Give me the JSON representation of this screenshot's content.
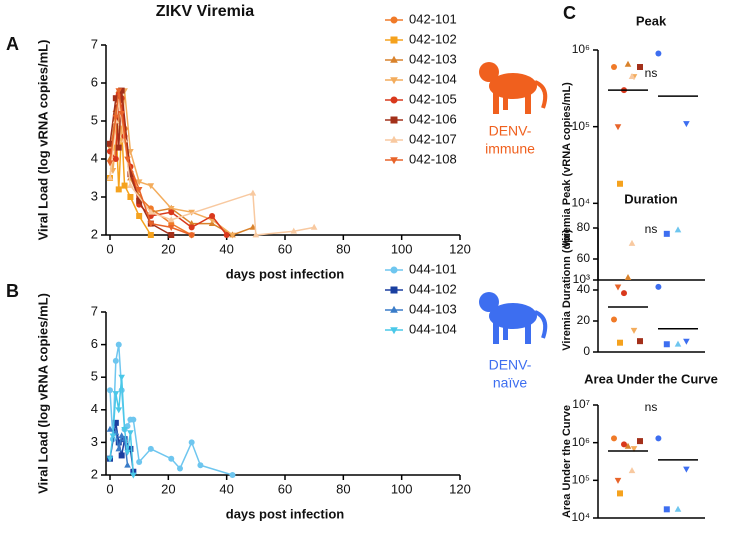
{
  "chart_data": [
    {
      "type": "line",
      "panel": "A",
      "title": "ZIKV Viremia",
      "xlabel": "days post infection",
      "ylabel": "Viral Load (log vRNA copies/mL)",
      "xlim": [
        0,
        120
      ],
      "xticks": [
        0,
        20,
        40,
        60,
        80,
        100,
        120
      ],
      "ylim": [
        2,
        7
      ],
      "yticks": [
        2,
        3,
        4,
        5,
        6,
        7
      ],
      "annotation_lines": [
        "DENV-",
        "immune"
      ],
      "annotation_color": "#f0601e",
      "series": [
        {
          "name": "042-101",
          "color": "#f07a28",
          "marker": "circle",
          "x": [
            0,
            2,
            3,
            4,
            5,
            7,
            10,
            14,
            21,
            28
          ],
          "values": [
            4.2,
            5.0,
            5.7,
            5.5,
            4.8,
            3.8,
            3.0,
            2.7,
            2.3,
            2.0
          ]
        },
        {
          "name": "042-102",
          "color": "#f5a21e",
          "marker": "square",
          "x": [
            0,
            1,
            2,
            3,
            4,
            5,
            7,
            10,
            14
          ],
          "values": [
            3.5,
            4.3,
            5.0,
            3.2,
            4.8,
            3.3,
            3.0,
            2.5,
            2.0
          ]
        },
        {
          "name": "042-103",
          "color": "#d9822b",
          "marker": "triangle",
          "x": [
            0,
            2,
            3,
            4,
            5,
            7,
            10,
            14,
            21,
            28,
            35,
            42,
            49
          ],
          "values": [
            4.0,
            5.3,
            5.8,
            5.2,
            4.5,
            3.5,
            3.0,
            2.6,
            2.7,
            2.3,
            2.3,
            2.0,
            2.2
          ]
        },
        {
          "name": "042-104",
          "color": "#f3ac5c",
          "marker": "down",
          "x": [
            0,
            1,
            3,
            4,
            5,
            7,
            10,
            14,
            21,
            28,
            35,
            42
          ],
          "values": [
            4.3,
            3.7,
            5.2,
            4.5,
            5.8,
            4.2,
            3.4,
            3.3,
            2.7,
            2.6,
            2.4,
            2.0
          ]
        },
        {
          "name": "042-105",
          "color": "#d9381c",
          "marker": "circle",
          "x": [
            0,
            2,
            3,
            4,
            5,
            7,
            10,
            14,
            21,
            28,
            35,
            40
          ],
          "values": [
            4.2,
            4.0,
            5.7,
            5.6,
            4.6,
            3.8,
            2.8,
            2.5,
            2.6,
            2.2,
            2.5,
            2.0
          ]
        },
        {
          "name": "042-106",
          "color": "#a3301a",
          "marker": "square",
          "x": [
            0,
            2,
            3,
            4,
            7,
            10,
            14,
            21
          ],
          "values": [
            4.4,
            5.6,
            4.3,
            5.8,
            3.6,
            2.9,
            2.3,
            2.0
          ]
        },
        {
          "name": "042-107",
          "color": "#f8c9a0",
          "marker": "triangle",
          "x": [
            0,
            2,
            3,
            5,
            7,
            14,
            21,
            49,
            50,
            63,
            70
          ],
          "values": [
            3.5,
            5.0,
            5.5,
            4.5,
            3.3,
            2.6,
            2.4,
            3.1,
            2.0,
            2.1,
            2.2
          ]
        },
        {
          "name": "042-108",
          "color": "#e8642a",
          "marker": "down",
          "x": [
            0,
            2,
            3,
            4,
            6,
            10,
            14,
            21,
            28
          ],
          "values": [
            3.9,
            5.1,
            5.8,
            5.2,
            4.0,
            3.2,
            2.3,
            2.2,
            2.0
          ]
        }
      ]
    },
    {
      "type": "line",
      "panel": "B",
      "xlabel": "days post infection",
      "ylabel": "Viral Load (log vRNA copies/mL)",
      "xlim": [
        0,
        120
      ],
      "xticks": [
        0,
        20,
        40,
        60,
        80,
        100,
        120
      ],
      "ylim": [
        2,
        7
      ],
      "yticks": [
        2,
        3,
        4,
        5,
        6,
        7
      ],
      "annotation_lines": [
        "DENV-",
        "naïve"
      ],
      "annotation_color": "#3d6ef0",
      "series": [
        {
          "name": "044-101",
          "color": "#6ec6ef",
          "marker": "circle",
          "x": [
            0,
            1,
            2,
            3,
            4,
            5,
            6,
            7,
            8,
            10,
            14,
            21,
            24,
            28,
            31,
            42
          ],
          "values": [
            4.6,
            3.1,
            5.5,
            6.0,
            4.6,
            3.4,
            3.5,
            3.7,
            3.7,
            2.4,
            2.8,
            2.5,
            2.2,
            3.0,
            2.3,
            2.0
          ]
        },
        {
          "name": "044-102",
          "color": "#1a3fa0",
          "marker": "square",
          "x": [
            0,
            2,
            3,
            4,
            5,
            7,
            8
          ],
          "values": [
            2.5,
            3.6,
            3.0,
            2.6,
            3.1,
            2.8,
            2.1
          ]
        },
        {
          "name": "044-103",
          "color": "#3a7cc8",
          "marker": "triangle",
          "x": [
            0,
            2,
            3,
            4,
            5,
            6
          ],
          "values": [
            3.4,
            3.3,
            2.8,
            3.2,
            3.1,
            2.3
          ]
        },
        {
          "name": "044-104",
          "color": "#4ac8e8",
          "marker": "down",
          "x": [
            0,
            1,
            2,
            3,
            4,
            5,
            6,
            7,
            8
          ],
          "values": [
            2.5,
            3.2,
            4.5,
            4.0,
            5.0,
            3.4,
            2.7,
            3.3,
            2.0
          ]
        }
      ]
    },
    {
      "type": "strip",
      "panel": "C",
      "title": "Peak",
      "ylabel": "Viremia Peak (vRNA copies/mL)",
      "annotation": "ns",
      "log_scale": true,
      "ylim": [
        1000,
        1000000
      ],
      "yticks": [
        {
          "value": 1000,
          "label": "10³"
        },
        {
          "value": 10000,
          "label": "10⁴"
        },
        {
          "value": 100000,
          "label": "10⁵"
        },
        {
          "value": 1000000,
          "label": "10⁶"
        }
      ],
      "groups": [
        {
          "values": [
            600000,
            18000,
            650000,
            450000,
            300000,
            600000,
            450000,
            100000
          ],
          "median": 300000,
          "colors": [
            "#f07a28",
            "#f5a21e",
            "#d9822b",
            "#f3ac5c",
            "#d9381c",
            "#a3301a",
            "#f8c9a0",
            "#e8642a"
          ],
          "markers": [
            "circle",
            "square",
            "triangle",
            "down",
            "circle",
            "square",
            "triangle",
            "down"
          ]
        },
        {
          "values": [
            900000,
            4000,
            4500,
            110000
          ],
          "median": 250000,
          "colors": [
            "#3d6ef0",
            "#3d6ef0",
            "#6ec6ef",
            "#3d6ef0"
          ],
          "markers": [
            "circle",
            "square",
            "triangle",
            "down"
          ]
        }
      ]
    },
    {
      "type": "strip",
      "title": "Duration",
      "ylabel": "Viremia Durationn (dpi)",
      "annotation": "ns",
      "ylim": [
        0,
        80
      ],
      "yticks": [
        0,
        20,
        40,
        60,
        80
      ],
      "groups": [
        {
          "values": [
            21,
            6,
            48,
            14,
            38,
            7,
            70,
            42
          ],
          "median": 29,
          "colors": [
            "#f07a28",
            "#f5a21e",
            "#d9822b",
            "#f3ac5c",
            "#d9381c",
            "#a3301a",
            "#f8c9a0",
            "#e8642a"
          ],
          "markers": [
            "circle",
            "square",
            "triangle",
            "down",
            "circle",
            "square",
            "triangle",
            "down"
          ]
        },
        {
          "values": [
            42,
            5,
            5,
            7
          ],
          "median": 15,
          "colors": [
            "#3d6ef0",
            "#3d6ef0",
            "#6ec6ef",
            "#3d6ef0"
          ],
          "markers": [
            "circle",
            "square",
            "triangle",
            "down"
          ]
        }
      ]
    },
    {
      "type": "strip",
      "title": "Area Under the Curve",
      "ylabel": "Area Under the Curve",
      "annotation": "ns",
      "log_scale": true,
      "ylim": [
        10000,
        10000000
      ],
      "yticks": [
        {
          "value": 10000,
          "label": "10⁴"
        },
        {
          "value": 100000,
          "label": "10⁵"
        },
        {
          "value": 1000000,
          "label": "10⁶"
        },
        {
          "value": 10000000,
          "label": "10⁷"
        }
      ],
      "groups": [
        {
          "values": [
            1300000,
            45000,
            800000,
            700000,
            900000,
            1100000,
            180000,
            100000
          ],
          "median": 600000,
          "colors": [
            "#f07a28",
            "#f5a21e",
            "#d9822b",
            "#f3ac5c",
            "#d9381c",
            "#a3301a",
            "#f8c9a0",
            "#e8642a"
          ],
          "markers": [
            "circle",
            "square",
            "triangle",
            "down",
            "circle",
            "square",
            "triangle",
            "down"
          ]
        },
        {
          "values": [
            1300000,
            17000,
            17000,
            200000
          ],
          "median": 350000,
          "colors": [
            "#3d6ef0",
            "#3d6ef0",
            "#6ec6ef",
            "#3d6ef0"
          ],
          "markers": [
            "circle",
            "square",
            "triangle",
            "down"
          ]
        }
      ]
    }
  ]
}
